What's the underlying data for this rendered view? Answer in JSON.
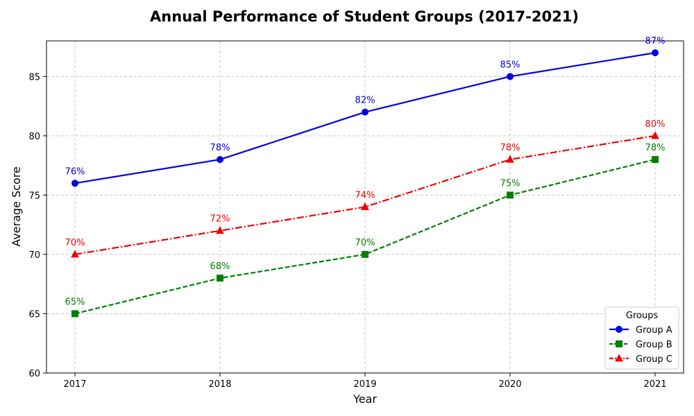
{
  "chart_data": {
    "type": "line",
    "title": "Annual Performance of Student Groups (2017-2021)",
    "xlabel": "Year",
    "ylabel": "Average Score",
    "x": [
      2017,
      2018,
      2019,
      2020,
      2021
    ],
    "x_tick_labels": [
      "2017",
      "2018",
      "2019",
      "2020",
      "2021"
    ],
    "ylim": [
      60,
      88
    ],
    "y_ticks": [
      60,
      65,
      70,
      75,
      80,
      85
    ],
    "y_tick_labels": [
      "60",
      "65",
      "70",
      "75",
      "80",
      "85"
    ],
    "grid": true,
    "legend": {
      "title": "Groups",
      "position": "bottom-right"
    },
    "series": [
      {
        "name": "Group A",
        "values": [
          76,
          78,
          82,
          85,
          87
        ],
        "labels": [
          "76%",
          "78%",
          "82%",
          "85%",
          "87%"
        ],
        "color": "#0000dd",
        "marker": "circle",
        "line_style": "solid"
      },
      {
        "name": "Group B",
        "values": [
          65,
          68,
          70,
          75,
          78
        ],
        "labels": [
          "65%",
          "68%",
          "70%",
          "75%",
          "78%"
        ],
        "color": "#008000",
        "marker": "square",
        "line_style": "dashed"
      },
      {
        "name": "Group C",
        "values": [
          70,
          72,
          74,
          78,
          80
        ],
        "labels": [
          "70%",
          "72%",
          "74%",
          "78%",
          "80%"
        ],
        "color": "#ee0000",
        "marker": "triangle",
        "line_style": "dash-dot"
      }
    ]
  }
}
